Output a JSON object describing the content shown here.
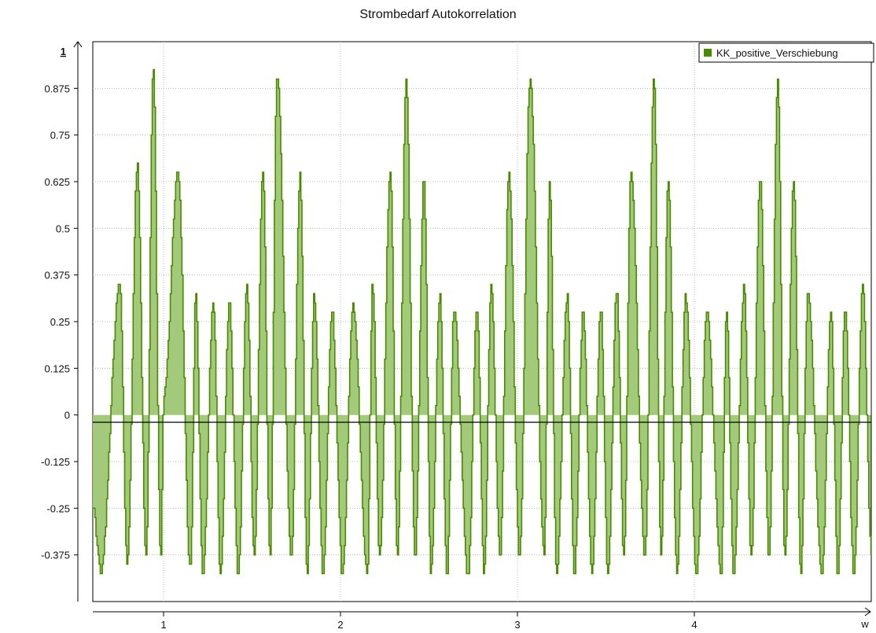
{
  "chart_data": {
    "type": "area",
    "title": "Strombedarf Autokorrelation",
    "xlabel": "w",
    "ylabel": "1",
    "xlim": [
      0.6,
      5.0
    ],
    "ylim": [
      -0.5,
      1.0
    ],
    "x_ticks": [
      "1",
      "2",
      "3",
      "4"
    ],
    "y_ticks": [
      "0.875",
      "0.75",
      "0.625",
      "0.5",
      "0.375",
      "0.25",
      "0.125",
      "0",
      "-0.125",
      "-0.25",
      "-0.375"
    ],
    "grid": true,
    "legend_position": "top-right",
    "series": [
      {
        "name": "KK_positive_Verschiebung",
        "color": "#4a8a00",
        "fill": "#a3c97a",
        "x": [
          0.6,
          0.643,
          0.75,
          0.793,
          0.85,
          0.9,
          0.94,
          0.982,
          1.0,
          1.08,
          1.15,
          1.18,
          1.22,
          1.28,
          1.32,
          1.37,
          1.42,
          1.47,
          1.51,
          1.56,
          1.6,
          1.64,
          1.72,
          1.77,
          1.81,
          1.85,
          1.9,
          1.95,
          2.01,
          2.07,
          2.15,
          2.18,
          2.22,
          2.28,
          2.32,
          2.37,
          2.42,
          2.47,
          2.51,
          2.56,
          2.6,
          2.64,
          2.72,
          2.77,
          2.81,
          2.85,
          2.9,
          2.95,
          3.01,
          3.07,
          3.15,
          3.18,
          3.22,
          3.28,
          3.32,
          3.37,
          3.42,
          3.47,
          3.51,
          3.56,
          3.6,
          3.64,
          3.72,
          3.77,
          3.81,
          3.85,
          3.9,
          3.95,
          4.01,
          4.07,
          4.15,
          4.18,
          4.22,
          4.28,
          4.32,
          4.37,
          4.42,
          4.47,
          4.51,
          4.56,
          4.6,
          4.64,
          4.72,
          4.77,
          4.81,
          4.85,
          4.9,
          4.95,
          5.0
        ],
        "y": [
          -0.25,
          -0.42,
          0.35,
          -0.4,
          0.67,
          -0.38,
          0.93,
          -0.38,
          0.05,
          0.65,
          -0.42,
          0.32,
          -0.43,
          0.3,
          -0.43,
          0.3,
          -0.43,
          0.35,
          -0.38,
          0.66,
          -0.38,
          0.92,
          -0.38,
          0.64,
          -0.42,
          0.32,
          -0.43,
          0.28,
          -0.43,
          0.29,
          -0.43,
          0.35,
          -0.38,
          0.66,
          -0.38,
          0.9,
          -0.38,
          0.63,
          -0.42,
          0.32,
          -0.43,
          0.28,
          -0.43,
          0.29,
          -0.43,
          0.34,
          -0.38,
          0.65,
          -0.38,
          0.9,
          -0.38,
          0.63,
          -0.42,
          0.32,
          -0.43,
          0.28,
          -0.43,
          0.29,
          -0.43,
          0.34,
          -0.38,
          0.64,
          -0.38,
          0.9,
          -0.38,
          0.63,
          -0.42,
          0.32,
          -0.43,
          0.28,
          -0.43,
          0.29,
          -0.43,
          0.34,
          -0.38,
          0.64,
          -0.38,
          0.9,
          -0.38,
          0.63,
          -0.42,
          0.32,
          -0.43,
          0.28,
          -0.43,
          0.29,
          -0.43,
          0.34,
          -0.38
        ]
      }
    ]
  }
}
